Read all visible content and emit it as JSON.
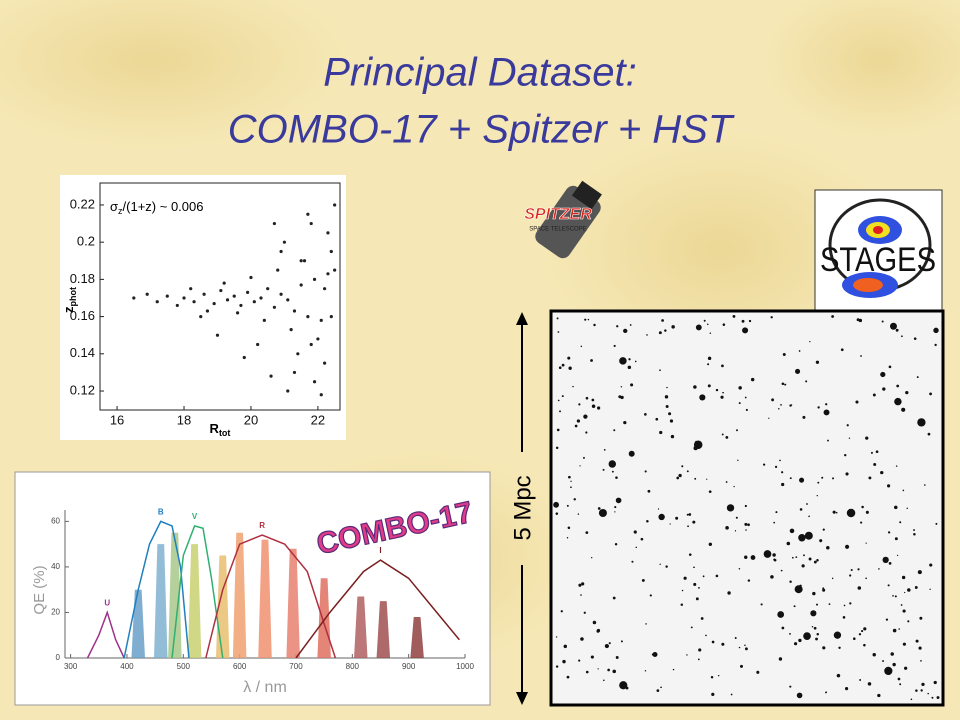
{
  "title": {
    "line1": "Principal Dataset:",
    "line2": "COMBO-17 + Spitzer + HST"
  },
  "chart_data": [
    {
      "type": "scatter",
      "annotation": {
        "sigma": "σ",
        "sub": "z",
        "rest": "/(1+z) ~ 0.006"
      },
      "xlabel": "R",
      "xlabel_sub": "tot",
      "ylabel": "z",
      "ylabel_sub": "phot",
      "xlim": [
        15.49,
        22.66
      ],
      "ylim": [
        0.1098,
        0.2318
      ],
      "xticks": [
        16,
        18,
        20,
        22
      ],
      "yticks": [
        0.12,
        0.14,
        0.16,
        0.18,
        0.2,
        0.22
      ],
      "color": "#222222",
      "x": [
        18.0,
        18.3,
        18.6,
        18.9,
        19.1,
        19.3,
        19.5,
        19.7,
        19.9,
        20.1,
        20.3,
        20.5,
        20.7,
        20.9,
        21.1,
        21.3,
        21.5,
        21.7,
        21.9,
        22.1,
        22.3,
        17.5,
        17.8,
        18.2,
        18.7,
        19.2,
        19.6,
        20.0,
        20.4,
        20.8,
        21.2,
        21.6,
        22.0,
        22.4,
        21.0,
        21.4,
        21.8,
        22.2,
        22.5,
        20.6,
        21.9,
        22.3,
        21.5,
        20.2,
        19.0,
        17.2,
        16.9,
        16.5,
        21.7,
        22.1,
        22.4,
        21.3,
        20.9,
        22.2,
        21.8,
        22.5,
        19.8,
        18.5,
        20.7,
        21.1
      ],
      "values": [
        0.17,
        0.168,
        0.172,
        0.167,
        0.174,
        0.169,
        0.171,
        0.166,
        0.173,
        0.168,
        0.17,
        0.175,
        0.165,
        0.172,
        0.169,
        0.163,
        0.177,
        0.16,
        0.18,
        0.158,
        0.183,
        0.171,
        0.166,
        0.175,
        0.163,
        0.178,
        0.162,
        0.181,
        0.158,
        0.185,
        0.153,
        0.19,
        0.148,
        0.195,
        0.2,
        0.14,
        0.21,
        0.135,
        0.22,
        0.128,
        0.125,
        0.205,
        0.19,
        0.145,
        0.15,
        0.168,
        0.172,
        0.17,
        0.215,
        0.118,
        0.16,
        0.13,
        0.195,
        0.175,
        0.145,
        0.185,
        0.138,
        0.16,
        0.21,
        0.12
      ]
    },
    {
      "type": "line",
      "xlabel": "λ / nm",
      "ylabel": "QE (%)",
      "xlim": [
        290,
        1000
      ],
      "ylim": [
        0,
        65
      ],
      "xticks": [
        300,
        400,
        500,
        600,
        700,
        800,
        900,
        1000
      ],
      "yticks": [
        0,
        20,
        40,
        60
      ],
      "series": [
        {
          "color": "#6aa0c8",
          "filled": true,
          "x": [
            408,
            414,
            426,
            432
          ],
          "values": [
            0,
            30,
            30,
            0
          ]
        },
        {
          "color": "#80b0d0",
          "filled": true,
          "x": [
            448,
            454,
            466,
            472
          ],
          "values": [
            0,
            50,
            50,
            0
          ]
        },
        {
          "color": "#a8c888",
          "filled": true,
          "x": [
            473,
            479,
            491,
            497
          ],
          "values": [
            0,
            55,
            55,
            0
          ]
        },
        {
          "color": "#c8d070",
          "filled": true,
          "x": [
            508,
            514,
            526,
            532
          ],
          "values": [
            0,
            50,
            50,
            0
          ]
        },
        {
          "color": "#e8c070",
          "filled": true,
          "x": [
            558,
            564,
            576,
            582
          ],
          "values": [
            0,
            45,
            45,
            0
          ]
        },
        {
          "color": "#f0a070",
          "filled": true,
          "x": [
            588,
            594,
            606,
            612
          ],
          "values": [
            0,
            55,
            55,
            0
          ]
        },
        {
          "color": "#f09070",
          "filled": true,
          "x": [
            633,
            639,
            651,
            657
          ],
          "values": [
            0,
            52,
            52,
            0
          ]
        },
        {
          "color": "#e88070",
          "filled": true,
          "x": [
            683,
            689,
            701,
            707
          ],
          "values": [
            0,
            48,
            48,
            0
          ]
        },
        {
          "color": "#e07060",
          "filled": true,
          "x": [
            738,
            744,
            756,
            762
          ],
          "values": [
            0,
            35,
            35,
            0
          ]
        },
        {
          "color": "#b06060",
          "filled": true,
          "x": [
            803,
            809,
            821,
            827
          ],
          "values": [
            0,
            27,
            27,
            0
          ]
        },
        {
          "color": "#a05050",
          "filled": true,
          "x": [
            843,
            849,
            861,
            867
          ],
          "values": [
            0,
            25,
            25,
            0
          ]
        },
        {
          "color": "#904040",
          "filled": true,
          "x": [
            903,
            909,
            921,
            927
          ],
          "values": [
            0,
            18,
            18,
            0
          ]
        },
        {
          "name": "U",
          "color": "#a0308a",
          "x": [
            330,
            350,
            365,
            380,
            395
          ],
          "values": [
            0,
            10,
            20,
            8,
            0
          ]
        },
        {
          "name": "B",
          "color": "#2080c0",
          "x": [
            395,
            420,
            440,
            460,
            480,
            495,
            510
          ],
          "values": [
            0,
            30,
            50,
            60,
            58,
            40,
            0
          ]
        },
        {
          "name": "V",
          "color": "#30b070",
          "x": [
            480,
            500,
            520,
            535,
            550,
            570
          ],
          "values": [
            0,
            45,
            58,
            57,
            35,
            0
          ]
        },
        {
          "name": "R",
          "color": "#b03040",
          "x": [
            540,
            570,
            600,
            640,
            680,
            720,
            750,
            770
          ],
          "values": [
            0,
            30,
            50,
            54,
            50,
            38,
            15,
            0
          ]
        },
        {
          "name": "I",
          "color": "#7a2020",
          "x": [
            700,
            760,
            820,
            850,
            900,
            950,
            990
          ],
          "values": [
            0,
            20,
            38,
            43,
            35,
            20,
            8
          ]
        }
      ]
    }
  ],
  "logos": {
    "combo": "COMBO-17",
    "spitzer": "SPITZER",
    "spitzer_sub": "SPACE TELESCOPE",
    "stages": "STAGES"
  },
  "scale_label": "5 Mpc"
}
